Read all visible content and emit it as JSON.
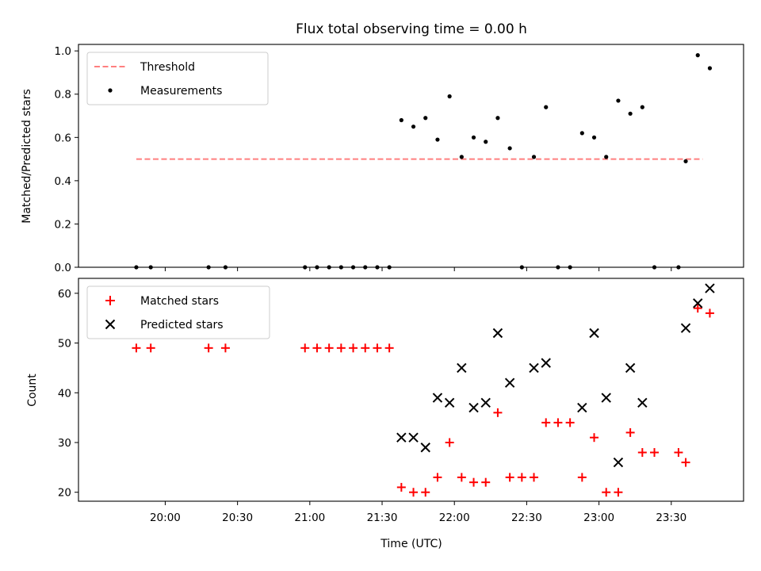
{
  "chart_data": [
    {
      "type": "scatter",
      "title": "Flux total observing time = 0.00 h",
      "ylabel": "Matched/Predicted stars",
      "ylim": [
        0,
        1.03
      ],
      "yticks": [
        0.0,
        0.2,
        0.4,
        0.6,
        0.8,
        1.0
      ],
      "ytick_labels": [
        "0.0",
        "0.2",
        "0.4",
        "0.6",
        "0.8",
        "1.0"
      ],
      "legend_position": "top-left",
      "threshold": {
        "name": "Threshold",
        "value": 0.5,
        "x_start": "19:48",
        "x_end": "23:43",
        "color": "#ff7f7f",
        "style": "dashed"
      },
      "series": [
        {
          "name": "Measurements",
          "marker": "dot",
          "color": "#000000",
          "x": [
            "19:48",
            "19:54",
            "20:18",
            "20:25",
            "20:58",
            "21:03",
            "21:08",
            "21:13",
            "21:18",
            "21:23",
            "21:28",
            "21:33",
            "21:38",
            "21:43",
            "21:48",
            "21:53",
            "21:58",
            "22:03",
            "22:08",
            "22:13",
            "22:18",
            "22:23",
            "22:28",
            "22:33",
            "22:38",
            "22:43",
            "22:48",
            "22:53",
            "22:58",
            "23:03",
            "23:08",
            "23:13",
            "23:18",
            "23:23",
            "23:33",
            "23:36",
            "23:41",
            "23:46"
          ],
          "y": [
            0.0,
            0.0,
            0.0,
            0.0,
            0.0,
            0.0,
            0.0,
            0.0,
            0.0,
            0.0,
            0.0,
            0.0,
            0.68,
            0.65,
            0.69,
            0.59,
            0.79,
            0.51,
            0.6,
            0.58,
            0.69,
            0.55,
            0.0,
            0.51,
            0.74,
            0.0,
            0.0,
            0.62,
            0.6,
            0.51,
            0.77,
            0.71,
            0.74,
            0.0,
            0.0,
            0.49,
            0.98,
            0.92
          ]
        }
      ]
    },
    {
      "type": "scatter",
      "xlabel": "Time (UTC)",
      "ylabel": "Count",
      "ylim": [
        18.2,
        63
      ],
      "yticks": [
        20,
        30,
        40,
        50,
        60
      ],
      "ytick_labels": [
        "20",
        "30",
        "40",
        "50",
        "60"
      ],
      "xlim": [
        "19:24",
        "24:00"
      ],
      "xticks": [
        "20:00",
        "20:30",
        "21:00",
        "21:30",
        "22:00",
        "22:30",
        "23:00",
        "23:30"
      ],
      "legend_position": "top-left",
      "series": [
        {
          "name": "Matched stars",
          "marker": "plus",
          "color": "#ff0000",
          "x": [
            "19:48",
            "19:54",
            "20:18",
            "20:25",
            "20:58",
            "21:03",
            "21:08",
            "21:13",
            "21:18",
            "21:23",
            "21:28",
            "21:33",
            "21:38",
            "21:43",
            "21:48",
            "21:53",
            "21:58",
            "22:03",
            "22:08",
            "22:13",
            "22:18",
            "22:23",
            "22:28",
            "22:33",
            "22:38",
            "22:43",
            "22:48",
            "22:53",
            "22:58",
            "23:03",
            "23:08",
            "23:13",
            "23:18",
            "23:23",
            "23:33",
            "23:36",
            "23:41",
            "23:46"
          ],
          "y": [
            49,
            49,
            49,
            49,
            49,
            49,
            49,
            49,
            49,
            49,
            49,
            49,
            21,
            20,
            20,
            23,
            30,
            23,
            22,
            22,
            36,
            23,
            23,
            23,
            34,
            34,
            34,
            23,
            31,
            20,
            20,
            32,
            28,
            28,
            28,
            26,
            57,
            56
          ]
        },
        {
          "name": "Predicted stars",
          "marker": "x",
          "color": "#000000",
          "x": [
            "21:38",
            "21:43",
            "21:48",
            "21:53",
            "21:58",
            "22:03",
            "22:08",
            "22:13",
            "22:18",
            "22:23",
            "22:33",
            "22:38",
            "22:53",
            "22:58",
            "23:03",
            "23:08",
            "23:13",
            "23:18",
            "23:36",
            "23:41",
            "23:46"
          ],
          "y": [
            31,
            31,
            29,
            39,
            38,
            45,
            37,
            38,
            52,
            42,
            45,
            46,
            37,
            52,
            39,
            26,
            45,
            38,
            53,
            58,
            61
          ]
        }
      ]
    }
  ]
}
